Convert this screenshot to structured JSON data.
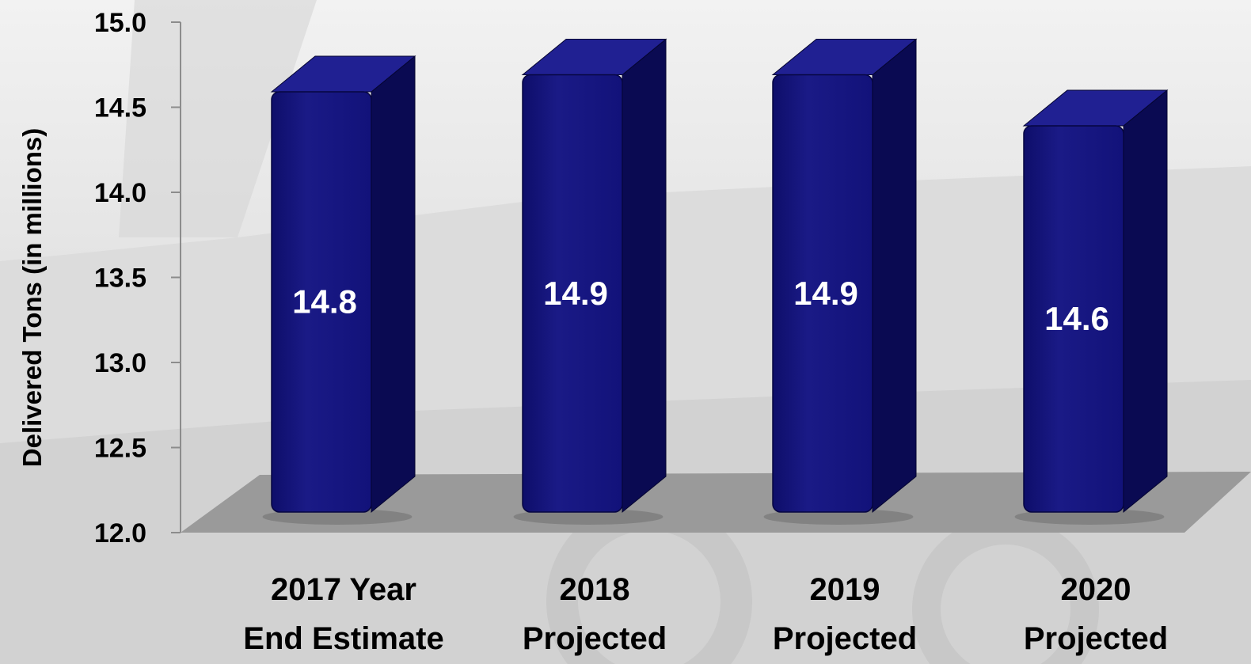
{
  "chart_data": {
    "type": "bar",
    "title": "",
    "xlabel": "",
    "ylabel": "Delivered Tons (in millions)",
    "categories": [
      [
        "2017 Year",
        "End Estimate"
      ],
      [
        "2018",
        "Projected"
      ],
      [
        "2019",
        "Projected"
      ],
      [
        "2020",
        "Projected"
      ]
    ],
    "values": [
      14.8,
      14.9,
      14.9,
      14.6
    ],
    "data_labels": [
      "14.8",
      "14.9",
      "14.9",
      "14.6"
    ],
    "ylim": [
      12.0,
      15.0
    ],
    "yticks": [
      "12.0",
      "12.5",
      "13.0",
      "13.5",
      "14.0",
      "14.5",
      "15.0"
    ],
    "grid": false,
    "legend": "none",
    "style": "3d-bars",
    "colors": {
      "bar_front": "#15157e",
      "bar_side": "#0a0a52",
      "bar_top": "#202092",
      "floor": "#9a9a9a",
      "axis": "#8c8c8c",
      "data_label": "#ffffff",
      "background": "#e9e9e9"
    }
  }
}
